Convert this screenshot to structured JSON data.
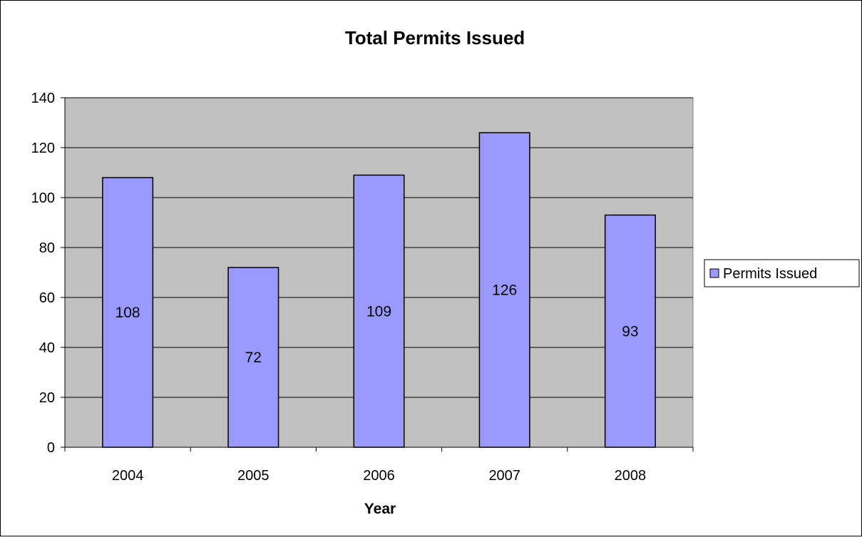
{
  "chart_data": {
    "type": "bar",
    "title": "Total Permits Issued",
    "xlabel": "Year",
    "ylabel": "",
    "categories": [
      "2004",
      "2005",
      "2006",
      "2007",
      "2008"
    ],
    "series": [
      {
        "name": "Permits Issued",
        "values": [
          108,
          72,
          109,
          126,
          93
        ],
        "color": "#9999ff"
      }
    ],
    "data_labels": [
      "108",
      "72",
      "109",
      "126",
      "93"
    ],
    "ylim": [
      0,
      140
    ],
    "y_ticks": [
      0,
      20,
      40,
      60,
      80,
      100,
      120,
      140
    ],
    "y_tick_labels": [
      "0",
      "20",
      "40",
      "60",
      "80",
      "100",
      "120",
      "140"
    ],
    "grid": true,
    "legend": "right",
    "plot_background": "#c0c0c0"
  }
}
